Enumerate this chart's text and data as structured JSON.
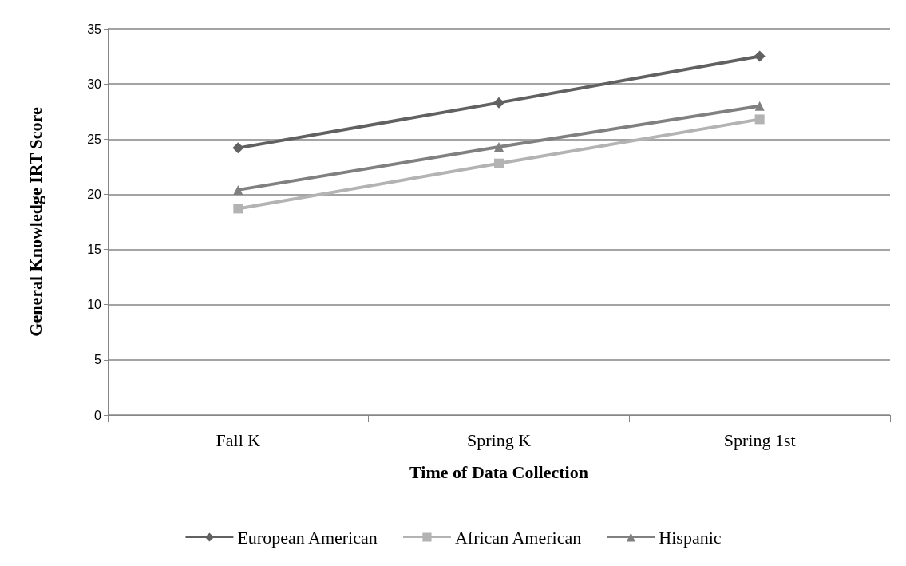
{
  "chart_data": {
    "type": "line",
    "xlabel": "Time of Data Collection",
    "ylabel": "General Knowledge IRT Score",
    "categories": [
      "Fall K",
      "Spring K",
      "Spring 1st"
    ],
    "series": [
      {
        "name": "European American",
        "color": "#616161",
        "marker": "diamond",
        "values": [
          24.2,
          28.3,
          32.5
        ]
      },
      {
        "name": "African American",
        "color": "#b3b3b3",
        "marker": "square",
        "values": [
          18.7,
          22.8,
          26.8
        ]
      },
      {
        "name": "Hispanic",
        "color": "#808080",
        "marker": "triangle",
        "values": [
          20.4,
          24.3,
          28.0
        ]
      }
    ],
    "ylim": [
      0,
      35
    ],
    "yticks": [
      0,
      5,
      10,
      15,
      20,
      25,
      30,
      35
    ],
    "grid": "y",
    "legend": "bottom"
  }
}
